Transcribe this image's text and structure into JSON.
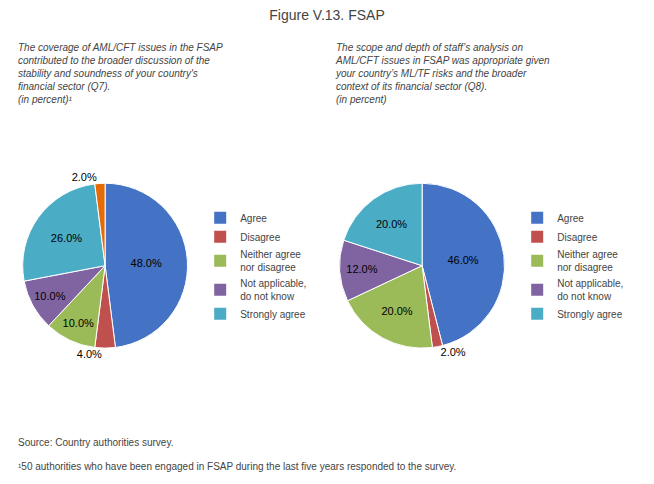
{
  "title": "Figure V.13. FSAP",
  "annotations": [
    "Source: Country authorities survey.",
    "¹50 authorities who have been engaged in FSAP during the last five years responded to the survey."
  ],
  "chart_data": [
    {
      "type": "pie",
      "subtitle": "The coverage of AML/CFT issues in the FSAP\ncontributed to the broader discussion of the\nstability and soundness of your country's\nfinancial sector (Q7).\n(in percent)¹",
      "categories": [
        "Agree",
        "Disagree",
        "Neither agree\nnor disagree",
        "Not applicable,\ndo not know",
        "Strongly agree",
        null
      ],
      "values": [
        48.0,
        4.0,
        10.0,
        10.0,
        26.0,
        2.0
      ],
      "value_labels": [
        "48.0%",
        "4.0%",
        "10.0%",
        "10.0%",
        "26.0%",
        "2.0%"
      ],
      "colors": [
        "#4472C4",
        "#C0504D",
        "#9BBB59",
        "#8064A2",
        "#4BACC6",
        "#E36C09"
      ],
      "data_labels": true,
      "legend": "right"
    },
    {
      "type": "pie",
      "subtitle": "The scope and depth of staff’s analysis on\nAML/CFT issues in FSAP was appropriate given\nyour country’s ML/TF risks and the broader\ncontext of its financial sector (Q8).\n(in percent)",
      "categories": [
        "Agree",
        "Disagree",
        "Neither agree\nnor disagree",
        "Not applicable,\ndo not know",
        "Strongly agree"
      ],
      "values": [
        46.0,
        2.0,
        20.0,
        12.0,
        20.0
      ],
      "value_labels": [
        "46.0%",
        "2.0%",
        "20.0%",
        "12.0%",
        "20.0%"
      ],
      "colors": [
        "#4472C4",
        "#C0504D",
        "#9BBB59",
        "#8064A2",
        "#4BACC6"
      ],
      "data_labels": true,
      "legend": "right"
    }
  ]
}
